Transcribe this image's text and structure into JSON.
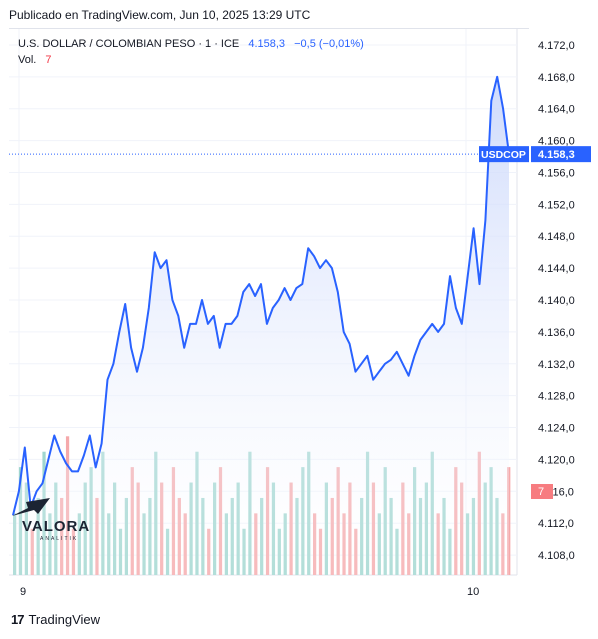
{
  "caption": "Publicado en TradingView.com, Jun 10, 2025 13:29 UTC",
  "legend": {
    "symbol": "U.S. DOLLAR / COLOMBIAN PESO · 1 · ICE",
    "price": "4.158,3",
    "change": "−0,5 (−0,01%)",
    "vol_label": "Vol.",
    "vol_value": "7"
  },
  "price_tag": {
    "ticker": "USDCOP",
    "price": "4.158,3"
  },
  "volume_tag": "7",
  "footer": {
    "brand": "TradingView",
    "mark": "17"
  },
  "watermark": {
    "name": "VALORA",
    "sub": "ANALITIK"
  },
  "colors": {
    "line": "#2962ff",
    "area": "#dfe6fb",
    "vol_up": "#9fd6cf",
    "vol_down": "#f5a9ab",
    "grid": "#f0f3fa",
    "tag_bg": "#2962ff",
    "vol_tag_bg": "#f77c80"
  },
  "chart_data": {
    "type": "area",
    "x_ticks": [
      "9",
      "10"
    ],
    "y_ticks": [
      "4.172,0",
      "4.168,0",
      "4.164,0",
      "4.160,0",
      "4.156,0",
      "4.152,0",
      "4.148,0",
      "4.144,0",
      "4.140,0",
      "4.136,0",
      "4.132,0",
      "4.128,0",
      "4.124,0",
      "4.120,0",
      "4.116,0",
      "4.112,0",
      "4.108,0"
    ],
    "ylim": [
      4105.5,
      4174.0
    ],
    "grid": true,
    "last_price": 4158.3,
    "series": [
      {
        "values": [
          4113.0,
          4116.0,
          4121.5,
          4114.0,
          4116.0,
          4117.0,
          4120.0,
          4123.0,
          4121.0,
          4119.5,
          4118.5,
          4118.5,
          4120.5,
          4123.0,
          4119.0,
          4122.0,
          4130.0,
          4132.0,
          4136.0,
          4139.5,
          4134.0,
          4131.0,
          4134.0,
          4139.0,
          4146.0,
          4144.0,
          4145.0,
          4140.0,
          4138.0,
          4134.0,
          4137.0,
          4137.0,
          4140.0,
          4137.0,
          4138.0,
          4134.0,
          4137.0,
          4137.0,
          4138.0,
          4141.0,
          4142.0,
          4140.5,
          4142.0,
          4137.0,
          4139.0,
          4140.0,
          4141.5,
          4140.0,
          4141.5,
          4142.0,
          4146.5,
          4145.5,
          4144.0,
          4145.0,
          4144.0,
          4141.0,
          4136.0,
          4134.5,
          4131.0,
          4132.0,
          4133.0,
          4130.0,
          4131.0,
          4132.0,
          4132.5,
          4133.5,
          4132.0,
          4130.5,
          4133.0,
          4135.0,
          4136.0,
          4137.0,
          4136.0,
          4137.0,
          4143.0,
          4139.0,
          4137.0,
          4143.0,
          4149.0,
          4142.0,
          4150.0,
          4165.0,
          4168.0,
          4164.0,
          4158.3
        ]
      }
    ],
    "volume": [
      4,
      7,
      6,
      3,
      5,
      8,
      4,
      6,
      5,
      9,
      3,
      4,
      6,
      7,
      5,
      8,
      4,
      6,
      3,
      5,
      7,
      6,
      4,
      5,
      8,
      6,
      3,
      7,
      5,
      4,
      6,
      8,
      5,
      3,
      6,
      7,
      4,
      5,
      6,
      3,
      8,
      4,
      5,
      7,
      6,
      3,
      4,
      6,
      5,
      7,
      8,
      4,
      3,
      6,
      5,
      7,
      4,
      6,
      3,
      5,
      8,
      6,
      4,
      7,
      5,
      3,
      6,
      4,
      7,
      5,
      6,
      8,
      4,
      5,
      3,
      7,
      6,
      4,
      5,
      8,
      6,
      7,
      5,
      4,
      7
    ]
  }
}
